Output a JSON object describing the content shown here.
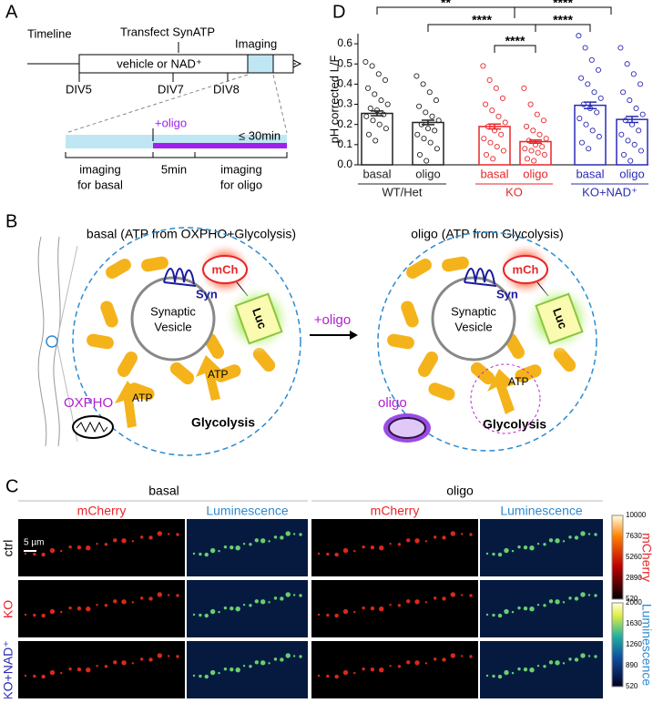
{
  "panel_a": {
    "letter": "A",
    "timeline": "Timeline",
    "transfect": "Transfect SynATP",
    "imaging": "Imaging",
    "treatment": "vehicle or NAD⁺",
    "days": [
      "DIV5",
      "DIV7",
      "DIV8"
    ],
    "oligo": "+oligo",
    "duration": "≤ 30min",
    "basal_window": [
      "imaging",
      "for basal"
    ],
    "gap": "5min",
    "oligo_window": [
      "imaging",
      "for oligo"
    ]
  },
  "panel_b": {
    "letter": "B",
    "arrow": "+oligo",
    "basal": {
      "title": "basal (ATP from OXPHO+Glycolysis)",
      "reporter": [
        "mCh",
        "Syn",
        "Luc"
      ],
      "vesicle": [
        "Synaptic",
        "Vesicle"
      ],
      "atp": [
        "ATP",
        "ATP"
      ],
      "sources": [
        "OXPHO",
        "Glycolysis"
      ]
    },
    "oligo": {
      "title": "oligo (ATP from Glycolysis)",
      "reporter": [
        "mCh",
        "Syn",
        "Luc"
      ],
      "vesicle": [
        "Synaptic",
        "Vesicle"
      ],
      "atp": "ATP",
      "sources": [
        "oligo",
        "Glycolysis"
      ]
    }
  },
  "panel_c": {
    "letter": "C",
    "conditions": [
      "basal",
      "oligo"
    ],
    "channels": [
      "mCherry",
      "Luminescence"
    ],
    "rows": [
      "ctrl",
      "KO",
      "KO+NAD⁺"
    ],
    "scale_bar": "5 µm",
    "colorbars": [
      {
        "label": "mCherry",
        "ticks": [
          10000,
          7630,
          5260,
          2890,
          520
        ]
      },
      {
        "label": "Luminescence",
        "ticks": [
          2000,
          1630,
          1260,
          890,
          520
        ]
      }
    ]
  },
  "panel_d_letter": "D",
  "chart_data": {
    "type": "bar",
    "ylabel": "pH corrected L/F",
    "categories": [
      "basal",
      "oligo"
    ],
    "ylim": [
      0,
      0.65
    ],
    "yticks": [
      {
        "value": 0,
        "label": "0.0"
      },
      0.1,
      0.2,
      0.3,
      0.4,
      0.5,
      0.6
    ],
    "series": [
      {
        "name": "WT/Het",
        "color": "#222222",
        "values": [
          0.255,
          0.21
        ],
        "errors": [
          0.012,
          0.011
        ],
        "points": [
          [
            0.51,
            0.49,
            0.45,
            0.42,
            0.38,
            0.35,
            0.32,
            0.3,
            0.28,
            0.27,
            0.25,
            0.24,
            0.22,
            0.2,
            0.18,
            0.15,
            0.12
          ],
          [
            0.44,
            0.4,
            0.36,
            0.32,
            0.29,
            0.26,
            0.24,
            0.22,
            0.2,
            0.18,
            0.17,
            0.15,
            0.13,
            0.11,
            0.08,
            0.05,
            0.02
          ]
        ]
      },
      {
        "name": "KO",
        "color": "#e8262a",
        "values": [
          0.19,
          0.115
        ],
        "errors": [
          0.012,
          0.008
        ],
        "points": [
          [
            0.49,
            0.42,
            0.38,
            0.33,
            0.3,
            0.27,
            0.24,
            0.21,
            0.19,
            0.17,
            0.15,
            0.13,
            0.11,
            0.09,
            0.07,
            0.05,
            0.03
          ],
          [
            0.38,
            0.3,
            0.25,
            0.22,
            0.19,
            0.17,
            0.15,
            0.13,
            0.12,
            0.1,
            0.09,
            0.08,
            0.07,
            0.06,
            0.05,
            0.03,
            0.02
          ]
        ]
      },
      {
        "name": "KO+NAD⁺",
        "color": "#2b2bb5",
        "values": [
          0.295,
          0.225
        ],
        "errors": [
          0.016,
          0.015
        ],
        "points": [
          [
            0.64,
            0.58,
            0.52,
            0.47,
            0.43,
            0.4,
            0.36,
            0.33,
            0.3,
            0.28,
            0.26,
            0.23,
            0.2,
            0.17,
            0.14,
            0.11,
            0.08
          ],
          [
            0.58,
            0.5,
            0.45,
            0.4,
            0.36,
            0.32,
            0.28,
            0.25,
            0.22,
            0.2,
            0.17,
            0.15,
            0.12,
            0.1,
            0.07,
            0.05,
            0.02
          ]
        ]
      }
    ],
    "annotations": [
      "**",
      "****",
      "****",
      "****",
      "****"
    ]
  }
}
